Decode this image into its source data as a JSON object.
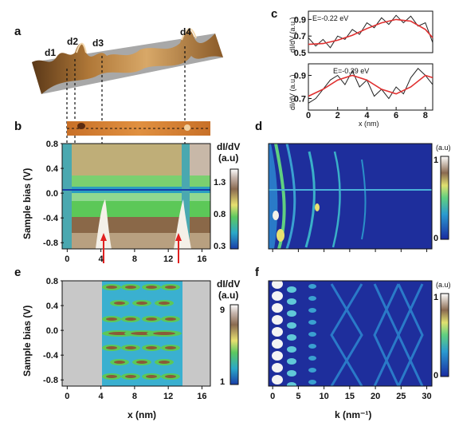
{
  "panels": {
    "a": {
      "label": "a",
      "peaks": [
        "d1",
        "d2",
        "d3",
        "d4"
      ],
      "arrow_x_nm": [
        4.2,
        13.2
      ]
    },
    "b": {
      "label": "b",
      "ylabel": "Sample bias (V)",
      "yticks": [
        "0.8",
        "0.4",
        "0.0",
        "-0.4",
        "-0.8"
      ],
      "xticks": [
        "0",
        "4",
        "8",
        "12",
        "16"
      ],
      "colorbar": {
        "title": "dI/dV",
        "units": "(a.u)",
        "ticks": [
          "1.3",
          "0.8",
          "0.3"
        ]
      }
    },
    "c": {
      "label": "c",
      "top_annotation": "E=-0.22 eV",
      "bottom_annotation": "E=-0.39 eV",
      "ylabel_top": "dI/dV (a.u.)",
      "ylabel_bottom": "dI/dV (a.u.)",
      "yticks_top": [
        "0.9",
        "0.7",
        "0.5"
      ],
      "yticks_bottom": [
        "0.9",
        "0.7"
      ],
      "xticks": [
        "0",
        "2",
        "4",
        "6",
        "8"
      ],
      "xlabel": "x (nm)"
    },
    "d": {
      "label": "d",
      "colorbar": {
        "units": "(a.u)",
        "ticks": [
          "1",
          "0"
        ]
      }
    },
    "e": {
      "label": "e",
      "ylabel": "Sample bias (V)",
      "yticks": [
        "0.8",
        "0.4",
        "0.0",
        "-0.4",
        "-0.8"
      ],
      "xticks": [
        "0",
        "4",
        "8",
        "12",
        "16"
      ],
      "xlabel": "x (nm)",
      "colorbar": {
        "title": "dI/dV",
        "units": "(a.u)",
        "ticks": [
          "9",
          "1"
        ]
      }
    },
    "f": {
      "label": "f",
      "xticks": [
        "0",
        "5",
        "10",
        "15",
        "20",
        "25",
        "30"
      ],
      "xlabel": "k (nm⁻¹)",
      "colorbar": {
        "units": "(a.u)",
        "ticks": [
          "1",
          "0"
        ]
      }
    }
  },
  "chart_data": [
    {
      "type": "heatmap",
      "panel": "b",
      "xlim": [
        0,
        16
      ],
      "ylim": [
        -0.9,
        0.8
      ],
      "colorbar_range": [
        0.3,
        1.3
      ],
      "vertical_lines_x": [
        0.6,
        1.4,
        4.2,
        13.2
      ]
    },
    {
      "type": "line",
      "panel": "c-top",
      "xlim": [
        0,
        8.5
      ],
      "ylim": [
        0.5,
        1.0
      ],
      "series": [
        {
          "x": [
            0,
            0.5,
            1,
            1.5,
            2,
            2.5,
            3,
            3.5,
            4,
            4.5,
            5,
            5.5,
            6,
            6.5,
            7,
            7.5,
            8,
            8.5
          ],
          "values": [
            0.68,
            0.58,
            0.66,
            0.56,
            0.7,
            0.66,
            0.78,
            0.72,
            0.86,
            0.8,
            0.92,
            0.84,
            0.95,
            0.86,
            0.94,
            0.82,
            0.86,
            0.62
          ]
        },
        {
          "x": [
            0,
            1,
            2,
            3,
            4,
            5,
            6,
            7,
            8,
            8.5
          ],
          "values": [
            0.6,
            0.61,
            0.65,
            0.71,
            0.79,
            0.86,
            0.9,
            0.88,
            0.78,
            0.68
          ]
        }
      ]
    },
    {
      "type": "line",
      "panel": "c-bottom",
      "xlim": [
        0,
        8.5
      ],
      "ylim": [
        0.6,
        1.0
      ],
      "series": [
        {
          "x": [
            0,
            0.5,
            1,
            1.5,
            2,
            2.5,
            3,
            3.5,
            4,
            4.5,
            5,
            5.5,
            6,
            6.5,
            7,
            7.5,
            8,
            8.5
          ],
          "values": [
            0.66,
            0.7,
            0.78,
            0.86,
            0.9,
            0.82,
            0.94,
            0.8,
            0.86,
            0.72,
            0.78,
            0.7,
            0.8,
            0.74,
            0.88,
            0.96,
            0.9,
            0.82
          ]
        },
        {
          "x": [
            0,
            1,
            2,
            3,
            4,
            5,
            6,
            7,
            8,
            8.5
          ],
          "values": [
            0.72,
            0.78,
            0.86,
            0.9,
            0.86,
            0.78,
            0.74,
            0.8,
            0.9,
            0.88
          ]
        }
      ]
    },
    {
      "type": "heatmap",
      "panel": "d",
      "xlim": [
        0,
        30
      ],
      "ylim": [
        -0.9,
        0.8
      ],
      "colorbar_range": [
        0,
        1
      ]
    },
    {
      "type": "heatmap",
      "panel": "e",
      "xlim": [
        0,
        17
      ],
      "ylim": [
        -0.9,
        0.8
      ],
      "data_xrange": [
        4.2,
        13.2
      ],
      "colorbar_range": [
        1,
        9
      ]
    },
    {
      "type": "heatmap",
      "panel": "f",
      "xlim": [
        0,
        30
      ],
      "ylim": [
        -0.9,
        0.8
      ],
      "colorbar_range": [
        0,
        1
      ]
    }
  ]
}
